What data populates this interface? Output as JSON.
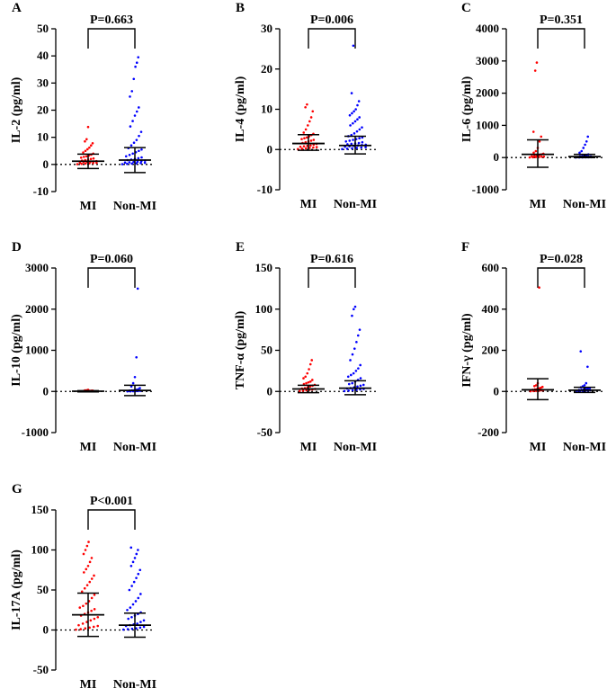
{
  "figure": {
    "colors": {
      "MI": "#ff0000",
      "Non-MI": "#0000ff",
      "axis": "#000000"
    }
  },
  "chart_data": [
    {
      "type": "scatter",
      "panel": "A",
      "ylabel": "IL-2 (pg/ml)",
      "categories": [
        "MI",
        "Non-MI"
      ],
      "ylim": [
        -10,
        50
      ],
      "yticks": [
        -10,
        0,
        10,
        20,
        30,
        40,
        50
      ],
      "annotation": "P=0.663",
      "groups": [
        {
          "name": "MI",
          "mean": 1.2,
          "sd_low": -1.5,
          "sd_high": 3.8,
          "points": [
            0.1,
            0.2,
            0.3,
            0.4,
            0.5,
            0.6,
            0.7,
            0.8,
            0.9,
            1.0,
            1.1,
            1.2,
            1.4,
            1.6,
            1.8,
            2.0,
            2.2,
            2.5,
            2.8,
            3.0,
            3.3,
            3.6,
            4.0,
            4.4,
            5.0,
            5.6,
            6.2,
            7.0,
            7.8,
            8.5,
            9.3,
            13.8
          ]
        },
        {
          "name": "Non-MI",
          "mean": 1.6,
          "sd_low": -3.0,
          "sd_high": 6.2,
          "points": [
            0.1,
            0.2,
            0.3,
            0.4,
            0.5,
            0.6,
            0.7,
            0.8,
            0.9,
            1.0,
            1.2,
            1.4,
            1.6,
            1.8,
            2.0,
            2.3,
            2.6,
            3.0,
            3.5,
            4.0,
            4.5,
            5.0,
            5.5,
            6.0,
            7.0,
            8.0,
            9.0,
            10.5,
            12,
            14,
            16,
            18,
            19.5,
            21,
            25,
            27,
            31.5,
            36,
            37.5,
            39.5
          ]
        }
      ]
    },
    {
      "type": "scatter",
      "panel": "B",
      "ylabel": "IL-4 (pg/ml)",
      "categories": [
        "MI",
        "Non-MI"
      ],
      "ylim": [
        -10,
        30
      ],
      "yticks": [
        -10,
        0,
        10,
        20,
        30
      ],
      "annotation": "P=0.006",
      "groups": [
        {
          "name": "MI",
          "mean": 1.5,
          "sd_low": -0.2,
          "sd_high": 3.7,
          "points": [
            0.1,
            0.2,
            0.3,
            0.4,
            0.5,
            0.6,
            0.7,
            0.8,
            0.9,
            1.0,
            1.2,
            1.4,
            1.6,
            1.8,
            2.0,
            2.2,
            2.4,
            2.6,
            2.8,
            3.0,
            3.3,
            3.6,
            3.9,
            4.2,
            5.0,
            6.0,
            7.0,
            8.0,
            9.5,
            10.5,
            11.2
          ]
        },
        {
          "name": "Non-MI",
          "mean": 1.0,
          "sd_low": -1.1,
          "sd_high": 3.3,
          "points": [
            0.1,
            0.2,
            0.3,
            0.4,
            0.5,
            0.6,
            0.7,
            0.8,
            0.9,
            1.0,
            1.1,
            1.2,
            1.3,
            1.4,
            1.5,
            1.6,
            1.8,
            2.0,
            2.2,
            2.4,
            2.6,
            2.8,
            3.0,
            3.3,
            3.6,
            4.0,
            4.5,
            5.0,
            5.5,
            6.0,
            6.5,
            7.0,
            7.5,
            8.0,
            8.5,
            9.0,
            9.5,
            10.0,
            11.0,
            12.0,
            14.0,
            25.8
          ]
        }
      ]
    },
    {
      "type": "scatter",
      "panel": "C",
      "ylabel": "IL-6 (pg/ml)",
      "categories": [
        "MI",
        "Non-MI"
      ],
      "ylim": [
        -1000,
        4000
      ],
      "yticks": [
        -1000,
        0,
        1000,
        2000,
        3000,
        4000
      ],
      "annotation": "P=0.351",
      "groups": [
        {
          "name": "MI",
          "mean": 100,
          "sd_low": -300,
          "sd_high": 550,
          "points": [
            5,
            10,
            15,
            20,
            25,
            30,
            40,
            50,
            60,
            80,
            100,
            120,
            150,
            200,
            300,
            500,
            650,
            800,
            2700,
            2950
          ]
        },
        {
          "name": "Non-MI",
          "mean": 30,
          "sd_low": 0,
          "sd_high": 100,
          "points": [
            2,
            4,
            6,
            8,
            10,
            12,
            15,
            18,
            20,
            25,
            30,
            35,
            40,
            50,
            60,
            80,
            100,
            150,
            200,
            300,
            400,
            500,
            650
          ]
        }
      ]
    },
    {
      "type": "scatter",
      "panel": "D",
      "ylabel": "IL-10 (pg/ml)",
      "categories": [
        "MI",
        "Non-MI"
      ],
      "ylim": [
        -1000,
        3000
      ],
      "yticks": [
        -1000,
        0,
        1000,
        2000,
        3000
      ],
      "annotation": "P=0.060",
      "groups": [
        {
          "name": "MI",
          "mean": 5,
          "sd_low": -10,
          "sd_high": 20,
          "points": [
            1,
            2,
            3,
            4,
            5,
            6,
            8,
            10,
            12,
            15,
            18,
            20,
            25,
            30,
            40
          ]
        },
        {
          "name": "Non-MI",
          "mean": 25,
          "sd_low": -100,
          "sd_high": 150,
          "points": [
            2,
            4,
            6,
            8,
            10,
            15,
            20,
            25,
            30,
            40,
            50,
            80,
            120,
            200,
            350,
            830,
            2500
          ]
        }
      ]
    },
    {
      "type": "scatter",
      "panel": "E",
      "ylabel": "TNF-α (pg/ml)",
      "categories": [
        "MI",
        "Non-MI"
      ],
      "ylim": [
        -50,
        150
      ],
      "yticks": [
        -50,
        0,
        50,
        100,
        150
      ],
      "annotation": "P=0.616",
      "groups": [
        {
          "name": "MI",
          "mean": 3,
          "sd_low": -1.5,
          "sd_high": 7.5,
          "points": [
            0.5,
            1,
            1.5,
            2,
            2.5,
            3,
            3.5,
            4,
            5,
            6,
            7,
            8,
            9,
            10,
            11,
            12,
            14,
            16,
            18,
            22,
            27,
            33,
            38
          ]
        },
        {
          "name": "Non-MI",
          "mean": 4,
          "sd_low": -4,
          "sd_high": 13,
          "points": [
            0.5,
            1,
            1.5,
            2,
            2.5,
            3,
            3.5,
            4,
            5,
            6,
            7,
            8,
            9,
            10,
            12,
            14,
            16,
            18,
            20,
            22,
            25,
            28,
            32,
            38,
            45,
            52,
            60,
            68,
            75,
            92,
            100,
            103
          ]
        }
      ]
    },
    {
      "type": "scatter",
      "panel": "F",
      "ylabel": "IFN-γ (pg/ml)",
      "categories": [
        "MI",
        "Non-MI"
      ],
      "ylim": [
        -200,
        600
      ],
      "yticks": [
        -200,
        0,
        200,
        400,
        600
      ],
      "annotation": "P=0.028",
      "groups": [
        {
          "name": "MI",
          "mean": 8,
          "sd_low": -40,
          "sd_high": 62,
          "points": [
            1,
            2,
            3,
            4,
            5,
            6,
            8,
            10,
            12,
            15,
            18,
            22,
            26,
            30,
            40,
            505
          ]
        },
        {
          "name": "Non-MI",
          "mean": 6,
          "sd_low": -5,
          "sd_high": 20,
          "points": [
            1,
            2,
            3,
            4,
            5,
            6,
            7,
            8,
            10,
            12,
            14,
            16,
            20,
            25,
            30,
            40,
            120,
            195
          ]
        }
      ]
    },
    {
      "type": "scatter",
      "panel": "G",
      "ylabel": "IL-17A (pg/ml)",
      "categories": [
        "MI",
        "Non-MI"
      ],
      "ylim": [
        -50,
        150
      ],
      "yticks": [
        -50,
        0,
        50,
        100,
        150
      ],
      "annotation": "P<0.001",
      "groups": [
        {
          "name": "MI",
          "mean": 19,
          "sd_low": -8,
          "sd_high": 46,
          "points": [
            0.5,
            1,
            2,
            3,
            4,
            5,
            6,
            8,
            10,
            12,
            14,
            16,
            18,
            20,
            22,
            24,
            26,
            28,
            30,
            33,
            36,
            40,
            44,
            48,
            52,
            56,
            60,
            64,
            68,
            72,
            76,
            80,
            85,
            90,
            95,
            100,
            105,
            110
          ]
        },
        {
          "name": "Non-MI",
          "mean": 6,
          "sd_low": -9,
          "sd_high": 21,
          "points": [
            0.5,
            1,
            1.5,
            2,
            3,
            4,
            5,
            6,
            7,
            8,
            10,
            12,
            14,
            16,
            18,
            20,
            22,
            25,
            28,
            32,
            36,
            40,
            45,
            50,
            55,
            60,
            65,
            70,
            75,
            80,
            85,
            90,
            95,
            100,
            103
          ]
        }
      ]
    }
  ]
}
